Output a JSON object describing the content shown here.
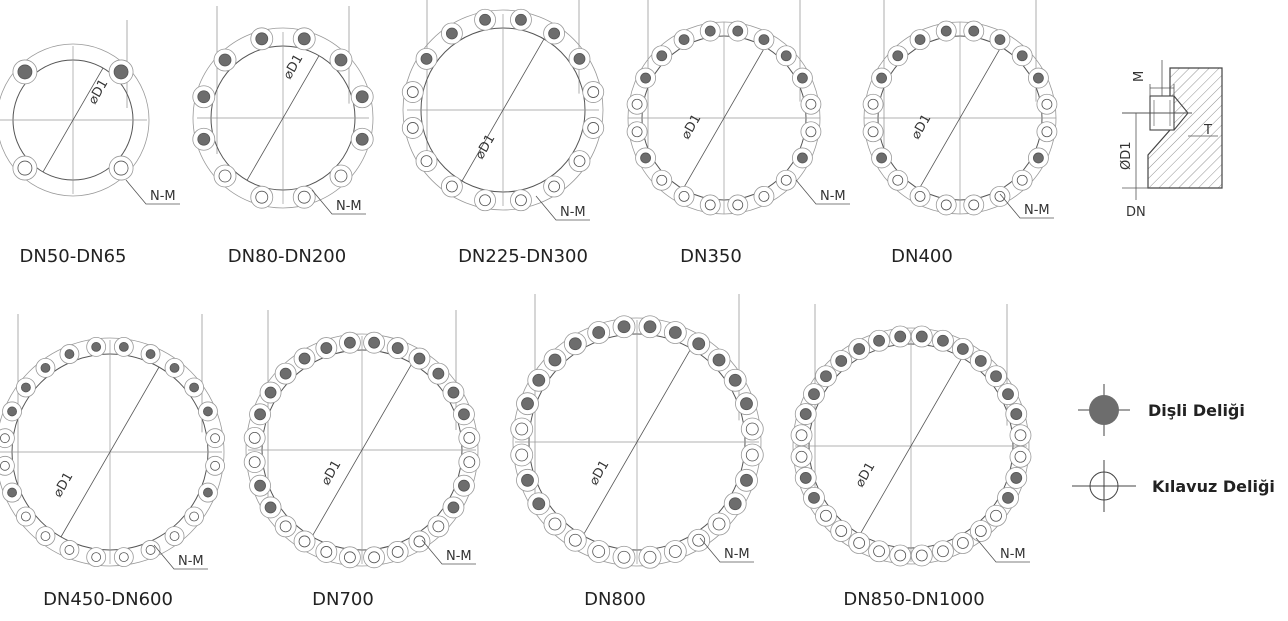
{
  "flanges": [
    {
      "id": "dn50-dn65",
      "label": "DN50-DN65",
      "d1_label": "D1",
      "nm_label": "N-M",
      "pattern": "four-lobe"
    },
    {
      "id": "dn80-dn200",
      "label": "DN80-DN200",
      "d1_label": "D1",
      "nm_label": "N-M",
      "pattern": "eight"
    },
    {
      "id": "dn225-dn300",
      "label": "DN225-DN300",
      "d1_label": "D1",
      "nm_label": "N-M",
      "pattern": "twelve"
    },
    {
      "id": "dn350",
      "label": "DN350",
      "d1_label": "D1",
      "nm_label": "N-M",
      "pattern": "sixteen"
    },
    {
      "id": "dn400",
      "label": "DN400",
      "d1_label": "D1",
      "nm_label": "N-M",
      "pattern": "sixteen"
    },
    {
      "id": "dn450-dn600",
      "label": "DN450-DN600",
      "d1_label": "D1",
      "nm_label": "N-M",
      "pattern": "twenty"
    },
    {
      "id": "dn700",
      "label": "DN700",
      "d1_label": "D1",
      "nm_label": "N-M",
      "pattern": "twentyfour"
    },
    {
      "id": "dn800",
      "label": "DN800",
      "d1_label": "D1",
      "nm_label": "N-M",
      "pattern": "twentyfour"
    },
    {
      "id": "dn850-dn1000",
      "label": "DN850-DN1000",
      "d1_label": "D1",
      "nm_label": "N-M",
      "pattern": "twentyeight"
    }
  ],
  "section": {
    "m": "M",
    "t": "T",
    "od1": "ØD1",
    "dn": "DN"
  },
  "legend": {
    "threaded": "Dişli Deliği",
    "tapped": "Kılavuz Deliği"
  },
  "colors": {
    "hole_fill": "#6d6d6d",
    "line": "#555555",
    "thin": "#999999"
  }
}
